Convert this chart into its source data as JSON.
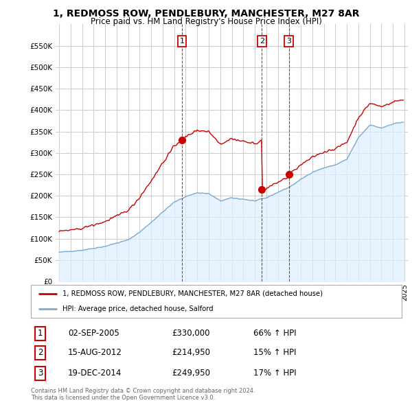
{
  "title": "1, REDMOSS ROW, PENDLEBURY, MANCHESTER, M27 8AR",
  "subtitle": "Price paid vs. HM Land Registry's House Price Index (HPI)",
  "legend_label_red": "1, REDMOSS ROW, PENDLEBURY, MANCHESTER, M27 8AR (detached house)",
  "legend_label_blue": "HPI: Average price, detached house, Salford",
  "sales": [
    {
      "num": 1,
      "date": "02-SEP-2005",
      "price": 330000,
      "hpi_pct": "66% ↑ HPI",
      "year": 2005.67
    },
    {
      "num": 2,
      "date": "15-AUG-2012",
      "price": 214950,
      "hpi_pct": "15% ↑ HPI",
      "year": 2012.62
    },
    {
      "num": 3,
      "date": "19-DEC-2014",
      "price": 249950,
      "hpi_pct": "17% ↑ HPI",
      "year": 2014.96
    }
  ],
  "footer_line1": "Contains HM Land Registry data © Crown copyright and database right 2024.",
  "footer_line2": "This data is licensed under the Open Government Licence v3.0.",
  "ylim": [
    0,
    600000
  ],
  "xlim_start": 1994.7,
  "xlim_end": 2025.3,
  "red_color": "#cc0000",
  "blue_color": "#7aaad0",
  "blue_fill_color": "#ddeeff",
  "background_color": "#ffffff",
  "grid_color": "#cccccc"
}
